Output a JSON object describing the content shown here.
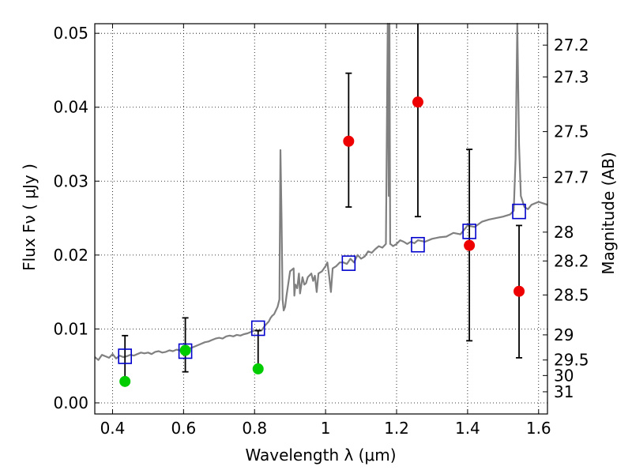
{
  "chart_data": {
    "type": "scatter",
    "xlabel": "Wavelength  λ (μm)",
    "ylabel": "Flux  Fν  ( μJy )",
    "ylabel_right": "Magnitude (AB)",
    "xlim": [
      0.35,
      1.625
    ],
    "ylim": [
      -0.0015,
      0.0513
    ],
    "x_ticks": [
      0.4,
      0.6,
      0.8,
      1.0,
      1.2,
      1.4,
      1.6
    ],
    "x_tick_labels": [
      "0.4",
      "0.6",
      "0.8",
      "1",
      "1.2",
      "1.4",
      "1.6"
    ],
    "y_ticks": [
      0.0,
      0.01,
      0.02,
      0.03,
      0.04,
      0.05
    ],
    "y_tick_labels": [
      "0.00",
      "0.01",
      "0.02",
      "0.03",
      "0.04",
      "0.05"
    ],
    "magnitude_ticks": [
      {
        "label": "27.2",
        "flux": 0.0484
      },
      {
        "label": "27.3",
        "flux": 0.0441
      },
      {
        "label": "27.5",
        "flux": 0.0367
      },
      {
        "label": "27.7",
        "flux": 0.0305
      },
      {
        "label": "28",
        "flux": 0.0231
      },
      {
        "label": "28.2",
        "flux": 0.0192
      },
      {
        "label": "28.5",
        "flux": 0.0146
      },
      {
        "label": "29",
        "flux": 0.0092
      },
      {
        "label": "29.5",
        "flux": 0.0058
      },
      {
        "label": "30",
        "flux": 0.0037
      },
      {
        "label": "31",
        "flux": 0.0015
      }
    ],
    "grid": true,
    "series": [
      {
        "kind": "model_spectrum",
        "color": "#808080",
        "x": [
          0.35,
          0.36,
          0.37,
          0.38,
          0.39,
          0.4,
          0.41,
          0.42,
          0.43,
          0.44,
          0.45,
          0.46,
          0.47,
          0.48,
          0.49,
          0.5,
          0.51,
          0.52,
          0.53,
          0.54,
          0.55,
          0.56,
          0.57,
          0.58,
          0.59,
          0.6,
          0.61,
          0.62,
          0.63,
          0.64,
          0.65,
          0.66,
          0.67,
          0.68,
          0.69,
          0.7,
          0.71,
          0.72,
          0.73,
          0.74,
          0.75,
          0.76,
          0.77,
          0.78,
          0.79,
          0.8,
          0.81,
          0.82,
          0.83,
          0.84,
          0.845,
          0.85,
          0.855,
          0.86,
          0.865,
          0.87,
          0.873,
          0.876,
          0.879,
          0.882,
          0.886,
          0.89,
          0.9,
          0.91,
          0.912,
          0.915,
          0.92,
          0.925,
          0.928,
          0.935,
          0.94,
          0.945,
          0.95,
          0.96,
          0.965,
          0.97,
          0.975,
          0.98,
          0.99,
          1.0,
          1.005,
          1.01,
          1.015,
          1.02,
          1.03,
          1.04,
          1.05,
          1.06,
          1.07,
          1.08,
          1.09,
          1.1,
          1.11,
          1.12,
          1.13,
          1.14,
          1.15,
          1.16,
          1.17,
          1.175,
          1.178,
          1.18,
          1.182,
          1.185,
          1.19,
          1.2,
          1.21,
          1.22,
          1.23,
          1.24,
          1.25,
          1.26,
          1.28,
          1.3,
          1.32,
          1.34,
          1.36,
          1.38,
          1.4,
          1.42,
          1.44,
          1.46,
          1.48,
          1.5,
          1.52,
          1.53,
          1.535,
          1.54,
          1.545,
          1.55,
          1.56,
          1.57,
          1.58,
          1.6,
          1.625
        ],
        "y": [
          0.0062,
          0.0058,
          0.0065,
          0.0063,
          0.0061,
          0.0066,
          0.006,
          0.0064,
          0.0062,
          0.0063,
          0.0065,
          0.0064,
          0.0066,
          0.0068,
          0.0067,
          0.0068,
          0.0066,
          0.0069,
          0.007,
          0.0068,
          0.0069,
          0.0071,
          0.007,
          0.0072,
          0.0071,
          0.0073,
          0.0072,
          0.0074,
          0.0076,
          0.0078,
          0.008,
          0.0082,
          0.0083,
          0.0085,
          0.0087,
          0.0088,
          0.0087,
          0.009,
          0.0091,
          0.009,
          0.0092,
          0.0091,
          0.0093,
          0.0094,
          0.0096,
          0.0098,
          0.0097,
          0.0098,
          0.0105,
          0.011,
          0.0115,
          0.0118,
          0.012,
          0.0125,
          0.013,
          0.014,
          0.0342,
          0.025,
          0.014,
          0.0125,
          0.013,
          0.0145,
          0.0178,
          0.0182,
          0.0145,
          0.016,
          0.0155,
          0.0175,
          0.0148,
          0.017,
          0.016,
          0.0162,
          0.017,
          0.0175,
          0.0165,
          0.0172,
          0.015,
          0.0175,
          0.0178,
          0.0185,
          0.019,
          0.0172,
          0.015,
          0.0182,
          0.0185,
          0.019,
          0.019,
          0.0188,
          0.0195,
          0.019,
          0.02,
          0.0195,
          0.0198,
          0.0205,
          0.0203,
          0.0208,
          0.0212,
          0.021,
          0.0215,
          0.0513,
          0.028,
          0.0513,
          0.0215,
          0.0214,
          0.0212,
          0.0215,
          0.022,
          0.0218,
          0.0215,
          0.0218,
          0.0216,
          0.022,
          0.0218,
          0.0222,
          0.0224,
          0.0225,
          0.023,
          0.0228,
          0.024,
          0.0238,
          0.0245,
          0.0248,
          0.025,
          0.0252,
          0.0255,
          0.026,
          0.033,
          0.0513,
          0.035,
          0.028,
          0.0265,
          0.0262,
          0.0268,
          0.0272,
          0.0268
        ]
      },
      {
        "kind": "model_photometry",
        "marker": "open-square",
        "color": "#0000cc",
        "x": [
          0.435,
          0.605,
          0.81,
          1.065,
          1.26,
          1.405,
          1.545
        ],
        "y": [
          0.0063,
          0.007,
          0.0101,
          0.0189,
          0.0214,
          0.0232,
          0.0259
        ]
      },
      {
        "kind": "detections",
        "marker": "filled-circle",
        "color": "#00cc00",
        "x": [
          0.435,
          0.605,
          0.81
        ],
        "y": [
          0.0029,
          0.0071,
          0.0046
        ],
        "yerr_low": [
          0.0029,
          0.0042,
          0.0046
        ],
        "yerr_high": [
          0.0091,
          0.0115,
          0.0098
        ]
      },
      {
        "kind": "upper_limits",
        "marker": "filled-circle",
        "color": "#ee0000",
        "x": [
          1.065,
          1.26,
          1.405,
          1.545
        ],
        "y": [
          0.0354,
          0.0407,
          0.0213,
          0.0151
        ],
        "yerr_low": [
          0.0265,
          0.0252,
          0.0084,
          0.0061
        ],
        "yerr_high": [
          0.0446,
          0.0513,
          0.0343,
          0.024
        ]
      }
    ]
  }
}
